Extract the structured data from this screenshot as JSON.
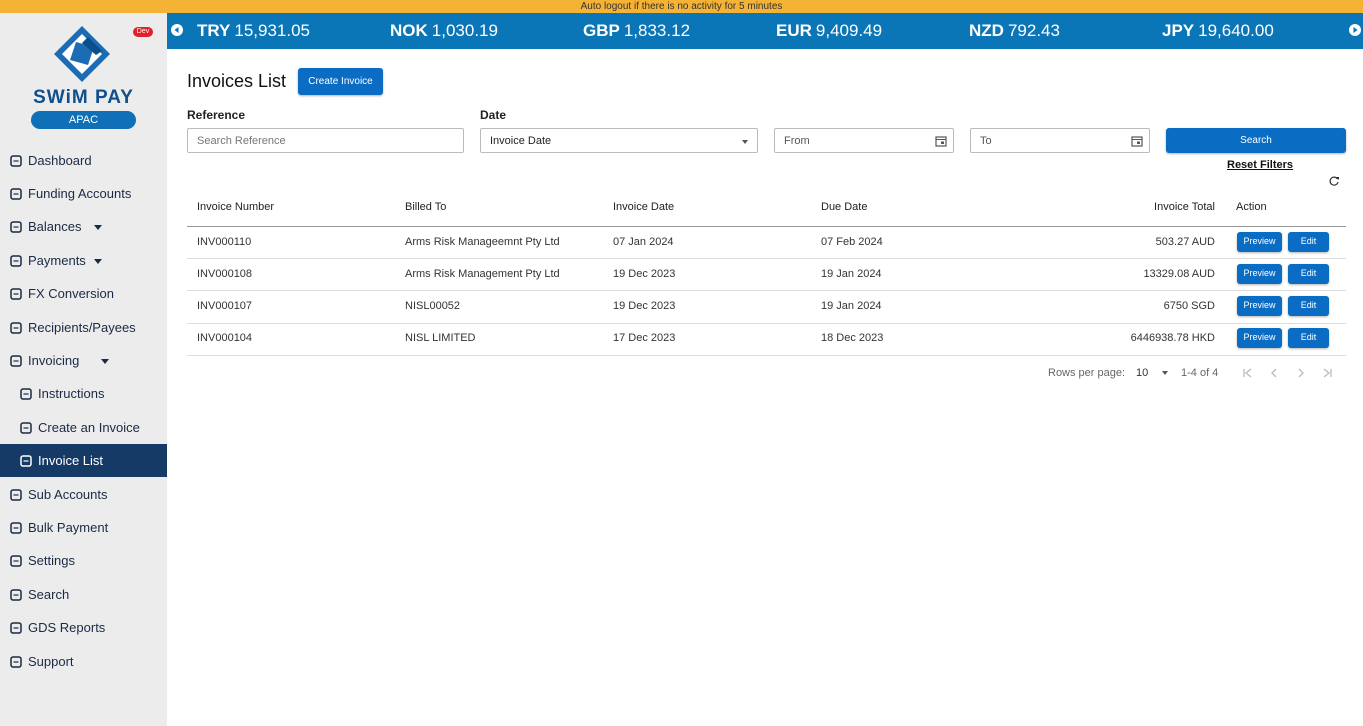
{
  "banner": "Auto logout if there is no activity for 5 minutes",
  "brand": {
    "name": "SWiM PAY",
    "region": "APAC",
    "badge": "Dev"
  },
  "ticker": [
    {
      "code": "TRY",
      "value": "15,931.05"
    },
    {
      "code": "NOK",
      "value": "1,030.19"
    },
    {
      "code": "GBP",
      "value": "1,833.12"
    },
    {
      "code": "EUR",
      "value": "9,409.49"
    },
    {
      "code": "NZD",
      "value": "792.43"
    },
    {
      "code": "JPY",
      "value": "19,640.00"
    }
  ],
  "nav": [
    {
      "label": "Dashboard"
    },
    {
      "label": "Funding Accounts"
    },
    {
      "label": "Balances",
      "dropdown": true
    },
    {
      "label": "Payments",
      "dropdown": true
    },
    {
      "label": "FX Conversion"
    },
    {
      "label": "Recipients/Payees"
    },
    {
      "label": "Invoicing",
      "dropdown": true,
      "children": [
        {
          "label": "Instructions"
        },
        {
          "label": "Create an Invoice"
        },
        {
          "label": "Invoice List",
          "active": true
        }
      ]
    },
    {
      "label": "Sub Accounts"
    },
    {
      "label": "Bulk Payment"
    },
    {
      "label": "Settings"
    },
    {
      "label": "Search"
    },
    {
      "label": "GDS Reports"
    },
    {
      "label": "Support"
    }
  ],
  "page": {
    "title": "Invoices List",
    "create_button": "Create Invoice"
  },
  "filters": {
    "reference_label": "Reference",
    "reference_placeholder": "Search Reference",
    "date_label": "Date",
    "date_select": "Invoice Date",
    "from": "From",
    "to": "To",
    "search": "Search",
    "reset": "Reset Filters"
  },
  "table": {
    "columns": [
      "Invoice Number",
      "Billed To",
      "Invoice Date",
      "Due Date",
      "Invoice Total",
      "Action"
    ],
    "rows": [
      [
        "INV000110",
        "Arms Risk Manageemnt Pty Ltd",
        "07 Jan 2024",
        "07 Feb 2024",
        "503.27 AUD"
      ],
      [
        "INV000108",
        "Arms Risk Management Pty Ltd",
        "19 Dec 2023",
        "19 Jan 2024",
        "13329.08 AUD"
      ],
      [
        "INV000107",
        "NISL00052",
        "19 Dec 2023",
        "19 Jan 2024",
        "6750 SGD"
      ],
      [
        "INV000104",
        "NISL LIMITED",
        "17 Dec 2023",
        "18 Dec 2023",
        "6446938.78 HKD"
      ]
    ],
    "actions": [
      "Preview",
      "Edit"
    ]
  },
  "pagination": {
    "rows_per_page_label": "Rows per page:",
    "rows_per_page": "10",
    "range": "1-4 of 4"
  }
}
